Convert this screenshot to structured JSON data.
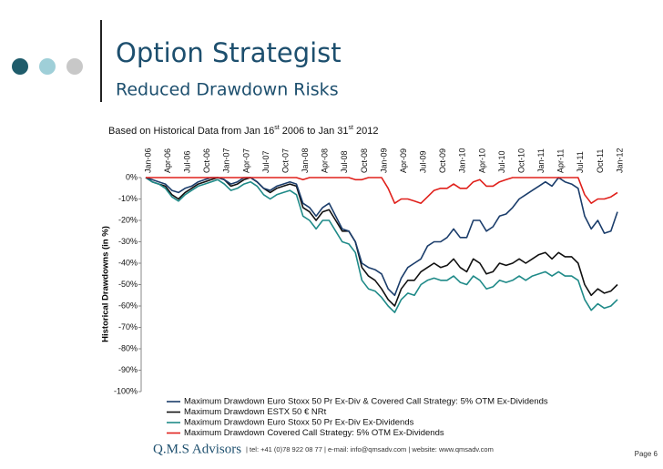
{
  "slide": {
    "title": "Option Strategist",
    "subtitle": "Reduced Drawdown Risks",
    "footer_logo": "Q.M.S Advisors",
    "footer_contact": "| tel: +41 (0)78 922 08 77 | e-mail: info@qmsadv.com | website: www.qmsadv.com",
    "page": "Page 6"
  },
  "chart_data": {
    "type": "line",
    "subtitle_parts": [
      "Based on Historical Data from Jan 16",
      "st",
      " 2006 to Jan 31",
      "st",
      " 2012"
    ],
    "y_label": "Historical Drawdowns (in %)",
    "categories": [
      "Jan-06",
      null,
      null,
      "Apr-06",
      null,
      null,
      "Jul-06",
      null,
      null,
      "Oct-06",
      null,
      null,
      "Jan-07",
      null,
      null,
      "Apr-07",
      null,
      null,
      "Jul-07",
      null,
      null,
      "Oct-07",
      null,
      null,
      "Jan-08",
      null,
      null,
      "Apr-08",
      null,
      null,
      "Jul-08",
      null,
      null,
      "Oct-08",
      null,
      null,
      "Jan-09",
      null,
      null,
      "Apr-09",
      null,
      null,
      "Jul-09",
      null,
      null,
      "Oct-09",
      null,
      null,
      "Jan-10",
      null,
      null,
      "Apr-10",
      null,
      null,
      "Jul-10",
      null,
      null,
      "Oct-10",
      null,
      null,
      "Jan-11",
      null,
      null,
      "Apr-11",
      null,
      null,
      "Jul-11",
      null,
      null,
      "Oct-11",
      null,
      null,
      "Jan-12"
    ],
    "series": [
      {
        "name": "Maximum Drawdown Euro Stoxx 50 Pr Ex-Div & Covered Call Strategy: 5% OTM Ex-Dividends",
        "color": "#1b3d6b",
        "values": [
          0,
          -1,
          -2,
          -3,
          -6,
          -7,
          -5,
          -4,
          -2,
          -1,
          0,
          0,
          -1,
          -3,
          -2,
          0,
          0,
          -2,
          -5,
          -6,
          -4,
          -3,
          -2,
          -3,
          -12,
          -14,
          -18,
          -14,
          -12,
          -18,
          -24,
          -25,
          -30,
          -40,
          -42,
          -43,
          -45,
          -52,
          -55,
          -47,
          -42,
          -40,
          -38,
          -32,
          -30,
          -30,
          -28,
          -24,
          -28,
          -28,
          -20,
          -20,
          -25,
          -23,
          -18,
          -17,
          -14,
          -10,
          -8,
          -6,
          -4,
          -2,
          -4,
          0,
          -2,
          -3,
          -5,
          -18,
          -24,
          -20,
          -26,
          -25,
          -16
        ]
      },
      {
        "name": "Maximum Drawdown ESTX 50 € NRt",
        "color": "#111111",
        "values": [
          0,
          -2,
          -3,
          -4,
          -8,
          -10,
          -7,
          -5,
          -3,
          -2,
          -1,
          0,
          -1,
          -4,
          -3,
          -1,
          0,
          -2,
          -5,
          -7,
          -5,
          -4,
          -3,
          -4,
          -14,
          -16,
          -20,
          -16,
          -15,
          -20,
          -25,
          -25,
          -30,
          -42,
          -46,
          -48,
          -52,
          -57,
          -60,
          -52,
          -48,
          -48,
          -44,
          -42,
          -40,
          -42,
          -41,
          -38,
          -42,
          -44,
          -38,
          -40,
          -45,
          -44,
          -40,
          -41,
          -40,
          -38,
          -40,
          -38,
          -36,
          -35,
          -38,
          -35,
          -37,
          -37,
          -40,
          -50,
          -55,
          -52,
          -54,
          -53,
          -50
        ]
      },
      {
        "name": "Maximum Drawdown Euro Stoxx 50 Pr Ex-Div Ex-Dividends",
        "color": "#1f8a88",
        "values": [
          0,
          -2,
          -3,
          -5,
          -9,
          -11,
          -8,
          -6,
          -4,
          -3,
          -2,
          -1,
          -3,
          -6,
          -5,
          -3,
          -2,
          -4,
          -8,
          -10,
          -8,
          -7,
          -6,
          -8,
          -18,
          -20,
          -24,
          -20,
          -20,
          -25,
          -30,
          -31,
          -35,
          -48,
          -52,
          -53,
          -56,
          -60,
          -63,
          -57,
          -54,
          -55,
          -50,
          -48,
          -47,
          -48,
          -48,
          -46,
          -49,
          -50,
          -46,
          -48,
          -52,
          -51,
          -48,
          -49,
          -48,
          -46,
          -48,
          -46,
          -45,
          -44,
          -46,
          -44,
          -46,
          -46,
          -48,
          -57,
          -62,
          -59,
          -61,
          -60,
          -57
        ]
      },
      {
        "name": "Maximum Drawdown Covered Call Strategy: 5% OTM Ex-Dividends",
        "color": "#e0201b",
        "values": [
          0,
          0,
          0,
          0,
          0,
          0,
          0,
          0,
          0,
          0,
          0,
          0,
          0,
          0,
          0,
          0,
          0,
          0,
          0,
          0,
          0,
          0,
          0,
          0,
          -1,
          0,
          0,
          0,
          0,
          0,
          0,
          0,
          -1,
          -1,
          0,
          0,
          0,
          -5,
          -12,
          -10,
          -10,
          -11,
          -12,
          -9,
          -6,
          -5,
          -5,
          -3,
          -5,
          -5,
          -2,
          -1,
          -4,
          -4,
          -2,
          -1,
          0,
          0,
          0,
          0,
          0,
          0,
          0,
          0,
          0,
          0,
          0,
          -8,
          -12,
          -10,
          -10,
          -9,
          -7
        ]
      }
    ],
    "ylim": [
      -100,
      0
    ],
    "yticks": [
      {
        "value": 0,
        "label": "0%"
      },
      {
        "value": -10,
        "label": "-10%"
      },
      {
        "value": -20,
        "label": "-20%"
      },
      {
        "value": -30,
        "label": "-30%"
      },
      {
        "value": -40,
        "label": "-40%"
      },
      {
        "value": -50,
        "label": "-50%"
      },
      {
        "value": -60,
        "label": "-60%"
      },
      {
        "value": -70,
        "label": "-70%"
      },
      {
        "value": -80,
        "label": "-80%"
      },
      {
        "value": -90,
        "label": "-90%"
      },
      {
        "value": -100,
        "label": "-100%"
      }
    ],
    "grid": false
  }
}
